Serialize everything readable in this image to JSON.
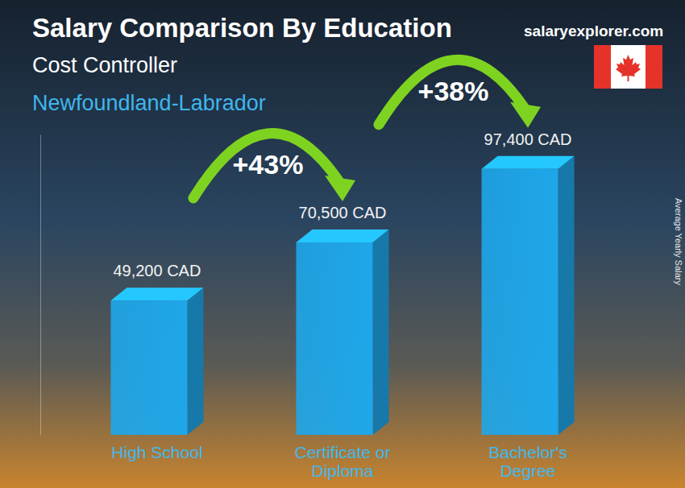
{
  "chart_data": {
    "type": "bar",
    "title": "Salary Comparison By Education",
    "subtitle": "Cost Controller",
    "location": "Newfoundland-Labrador",
    "source": "salaryexplorer.com",
    "y_label": "Average Yearly Salary",
    "categories": [
      "High School",
      "Certificate or Diploma",
      "Bachelor's Degree"
    ],
    "values": [
      49200,
      70500,
      97400
    ],
    "value_labels": [
      "49,200 CAD",
      "70,500 CAD",
      "97,400 CAD"
    ],
    "annotations": [
      "+43%",
      "+38%"
    ],
    "color": "#1ea7ea",
    "ylim": [
      0,
      110000
    ],
    "data_labels": true,
    "tick_labels": "x"
  }
}
